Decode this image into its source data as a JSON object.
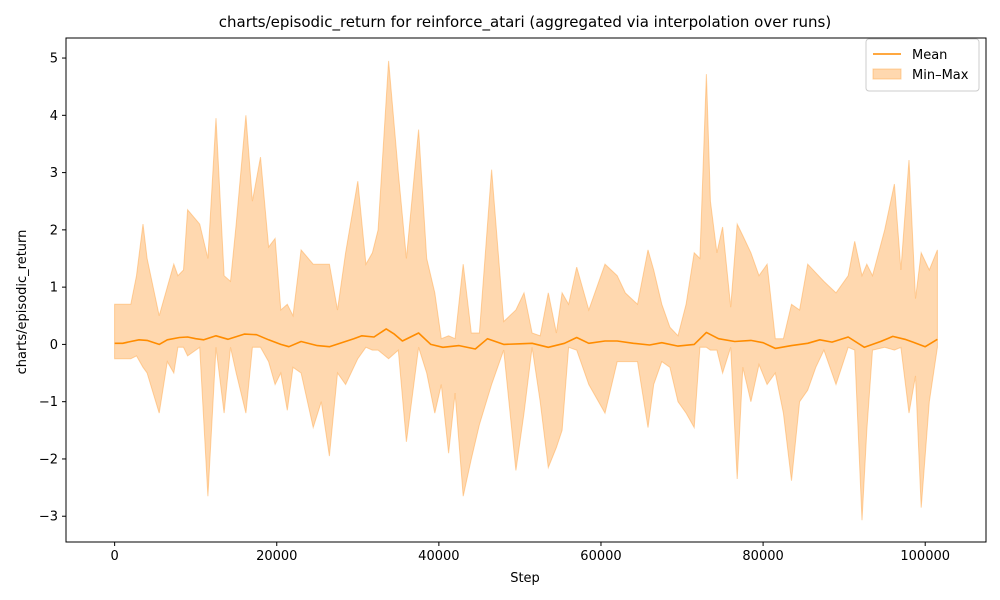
{
  "chart_data": {
    "type": "line",
    "title": "charts/episodic_return for reinforce_atari (aggregated via interpolation over runs)",
    "xlabel": "Step",
    "ylabel": "charts/episodic_return",
    "xlim": [
      -6000,
      107500
    ],
    "ylim": [
      -3.45,
      5.35
    ],
    "x_ticks": [
      0,
      20000,
      40000,
      60000,
      80000,
      100000
    ],
    "x_tick_labels": [
      "0",
      "20000",
      "40000",
      "60000",
      "80000",
      "100000"
    ],
    "y_ticks": [
      -3,
      -2,
      -1,
      0,
      1,
      2,
      3,
      4,
      5
    ],
    "y_tick_labels": [
      "−3",
      "−2",
      "−1",
      "0",
      "1",
      "2",
      "3",
      "4",
      "5"
    ],
    "grid": false,
    "legend": {
      "position": "top-right",
      "entries": [
        "Mean",
        "Min–Max"
      ]
    },
    "colors": {
      "mean": "#ff8c00",
      "band": "#ffa94d"
    },
    "series": [
      {
        "name": "Mean",
        "x": [
          0,
          1000,
          2000,
          3000,
          4000,
          5500,
          6500,
          8000,
          9000,
          10000,
          11000,
          12500,
          14000,
          16000,
          17500,
          19000,
          20500,
          21500,
          23000,
          25000,
          26500,
          28000,
          29500,
          30500,
          32000,
          33500,
          34500,
          35500,
          37500,
          39000,
          40500,
          42500,
          44500,
          46000,
          48000,
          50000,
          51500,
          53500,
          55500,
          57000,
          58500,
          60500,
          62000,
          64000,
          66000,
          67500,
          69500,
          71500,
          73000,
          74500,
          76500,
          78500,
          80000,
          81500,
          83500,
          85500,
          87000,
          88500,
          90500,
          92500,
          94500,
          96000,
          97500,
          98500,
          100000,
          101500
        ],
        "y": [
          0.02,
          0.02,
          0.05,
          0.08,
          0.07,
          0.0,
          0.08,
          0.12,
          0.13,
          0.1,
          0.08,
          0.15,
          0.09,
          0.18,
          0.17,
          0.08,
          0.0,
          -0.04,
          0.05,
          -0.02,
          -0.04,
          0.03,
          0.1,
          0.15,
          0.13,
          0.27,
          0.18,
          0.06,
          0.2,
          0.0,
          -0.05,
          -0.02,
          -0.08,
          0.1,
          0.0,
          0.01,
          0.02,
          -0.05,
          0.02,
          0.12,
          0.02,
          0.06,
          0.06,
          0.02,
          -0.01,
          0.03,
          -0.03,
          0.0,
          0.21,
          0.1,
          0.05,
          0.07,
          0.03,
          -0.07,
          -0.02,
          0.02,
          0.08,
          0.04,
          0.13,
          -0.05,
          0.05,
          0.14,
          0.09,
          0.04,
          -0.04,
          0.09
        ]
      },
      {
        "name": "Min–Max",
        "x": [
          0,
          500,
          1000,
          2000,
          2700,
          3500,
          4000,
          5500,
          6500,
          7300,
          7800,
          8500,
          9000,
          10500,
          11500,
          12500,
          13500,
          14300,
          15000,
          16200,
          17000,
          18000,
          19000,
          19800,
          20500,
          21300,
          22000,
          23000,
          24500,
          25500,
          26500,
          27500,
          28500,
          30000,
          31000,
          31800,
          32500,
          33800,
          35000,
          36000,
          37500,
          38500,
          39500,
          40300,
          41200,
          42000,
          43000,
          44000,
          45000,
          46500,
          48000,
          49500,
          50500,
          51500,
          52500,
          53500,
          54500,
          55200,
          56000,
          57000,
          58500,
          60500,
          62000,
          63000,
          64500,
          65800,
          66500,
          67500,
          68500,
          69500,
          70500,
          71500,
          72200,
          73000,
          73500,
          74300,
          75000,
          76000,
          76800,
          77500,
          78500,
          79500,
          80500,
          81500,
          82500,
          83500,
          84500,
          85500,
          86500,
          87500,
          89000,
          90500,
          91300,
          92200,
          92800,
          93500,
          95000,
          96200,
          97000,
          98000,
          98800,
          99500,
          100500,
          101500
        ],
        "y_max": [
          0.7,
          0.7,
          0.7,
          0.7,
          1.2,
          2.1,
          1.5,
          0.5,
          1.0,
          1.4,
          1.2,
          1.3,
          2.35,
          2.1,
          1.5,
          3.95,
          1.2,
          1.1,
          2.1,
          4.0,
          2.5,
          3.27,
          1.7,
          1.85,
          0.6,
          0.7,
          0.5,
          1.65,
          1.4,
          1.4,
          1.4,
          0.6,
          1.6,
          2.85,
          1.4,
          1.6,
          2.0,
          4.95,
          3.0,
          1.5,
          3.75,
          1.5,
          0.9,
          0.1,
          0.15,
          0.1,
          1.4,
          0.2,
          0.2,
          3.05,
          0.4,
          0.6,
          0.9,
          0.2,
          0.15,
          0.9,
          0.2,
          0.9,
          0.7,
          1.35,
          0.6,
          1.4,
          1.2,
          0.9,
          0.7,
          1.65,
          1.3,
          0.7,
          0.3,
          0.15,
          0.7,
          1.6,
          1.5,
          4.72,
          2.5,
          1.6,
          2.05,
          0.65,
          2.1,
          1.9,
          1.6,
          1.2,
          1.4,
          0.1,
          0.1,
          0.7,
          0.6,
          1.4,
          1.25,
          1.1,
          0.9,
          1.2,
          1.8,
          1.2,
          1.4,
          1.2,
          2.0,
          2.8,
          1.3,
          3.22,
          0.8,
          1.6,
          1.3,
          1.65
        ],
        "y_min": [
          -0.25,
          -0.25,
          -0.25,
          -0.25,
          -0.2,
          -0.4,
          -0.5,
          -1.2,
          -0.3,
          -0.5,
          -0.05,
          -0.05,
          -0.2,
          -0.05,
          -2.65,
          -0.05,
          -1.2,
          -0.05,
          -0.5,
          -1.2,
          -0.05,
          -0.05,
          -0.3,
          -0.7,
          -0.5,
          -1.15,
          -0.4,
          -0.5,
          -1.45,
          -1.0,
          -1.95,
          -0.5,
          -0.7,
          -0.25,
          -0.05,
          -0.1,
          -0.1,
          -0.25,
          -0.1,
          -1.7,
          -0.05,
          -0.5,
          -1.2,
          -0.7,
          -1.9,
          -0.85,
          -2.65,
          -2.0,
          -1.4,
          -0.7,
          -0.1,
          -2.2,
          -1.2,
          -0.05,
          -1.0,
          -2.15,
          -1.8,
          -1.5,
          -0.05,
          -0.1,
          -0.7,
          -1.2,
          -0.3,
          -0.3,
          -0.3,
          -1.45,
          -0.7,
          -0.3,
          -0.4,
          -1.0,
          -1.2,
          -1.45,
          -0.05,
          -0.05,
          -0.1,
          -0.1,
          -0.5,
          -0.05,
          -2.35,
          -0.4,
          -1.0,
          -0.35,
          -0.7,
          -0.5,
          -1.2,
          -2.38,
          -1.0,
          -0.8,
          -0.4,
          -0.1,
          -0.7,
          -0.05,
          -0.1,
          -3.07,
          -1.5,
          -0.1,
          -0.05,
          -0.1,
          -0.05,
          -1.2,
          -0.55,
          -2.85,
          -1.0,
          -0.05
        ]
      }
    ]
  }
}
